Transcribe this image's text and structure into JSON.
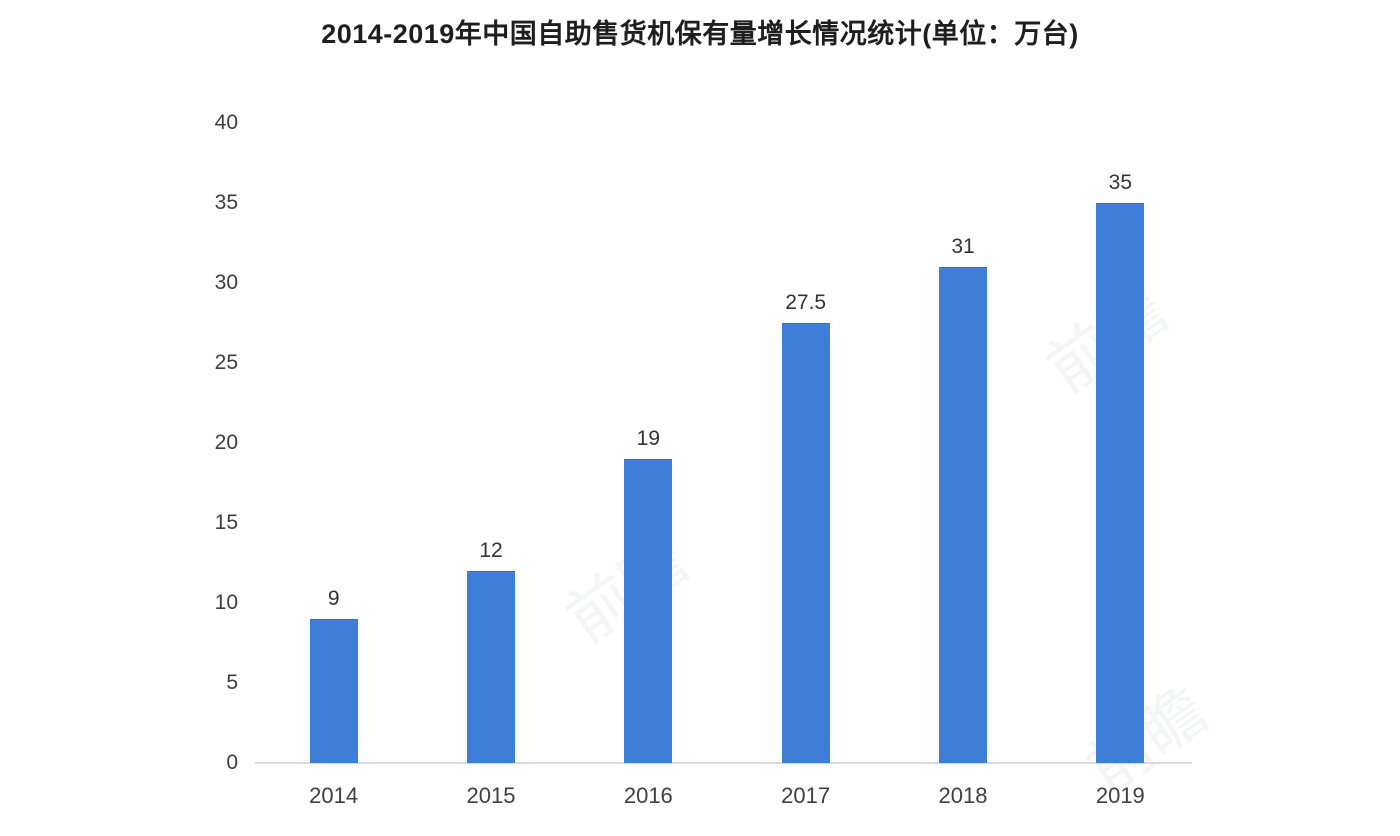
{
  "chart_data": {
    "type": "bar",
    "title": "2014-2019年中国自助售货机保有量增长情况统计(单位：万台)",
    "categories": [
      "2014",
      "2015",
      "2016",
      "2017",
      "2018",
      "2019"
    ],
    "values": [
      9,
      12,
      19,
      27.5,
      31,
      35
    ],
    "value_labels": [
      "9",
      "12",
      "19",
      "27.5",
      "31",
      "35"
    ],
    "yticks": [
      0,
      5,
      10,
      15,
      20,
      25,
      30,
      35,
      40
    ],
    "ylim": [
      0,
      40
    ],
    "xlabel": "",
    "ylabel": "",
    "grid": false,
    "legend_position": "none",
    "bar_color": "#3d7ed9",
    "axis_line_color": "#d9d9d9",
    "watermark_text": "前瞻"
  }
}
